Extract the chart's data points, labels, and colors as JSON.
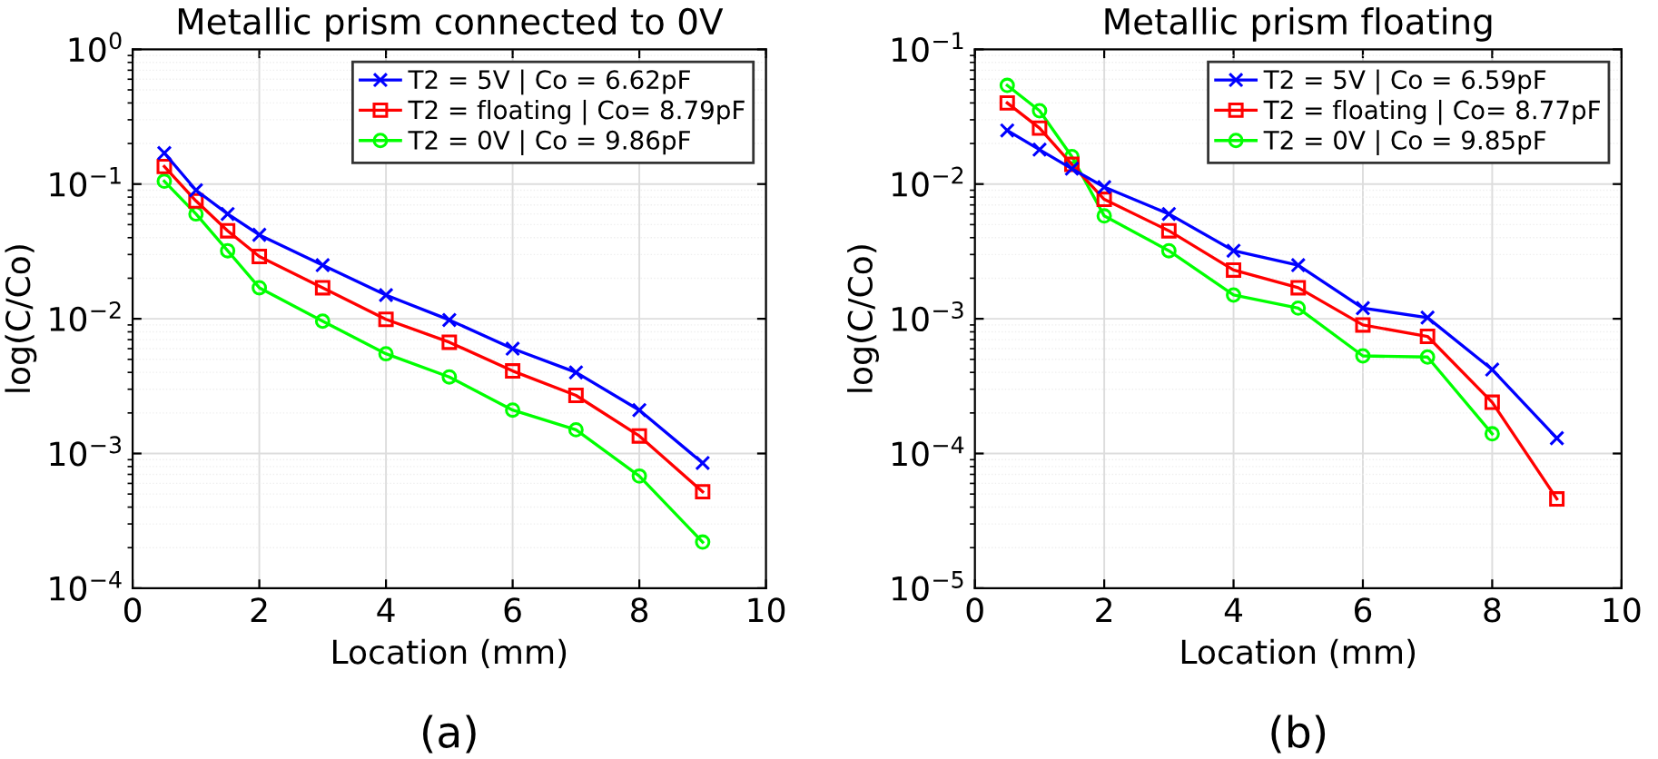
{
  "chart_data": [
    {
      "type": "line",
      "title": "Metallic prism connected to 0V",
      "xlabel": "Location (mm)",
      "ylabel": "log(C/Co)",
      "log": "y",
      "grid": true,
      "legend": "top right",
      "xlim": [
        0,
        10
      ],
      "xticks": [
        0,
        2,
        4,
        6,
        8,
        10
      ],
      "ylim": [
        0.0001,
        1
      ],
      "yticks": [
        {
          "value": 0.0001,
          "label": "10$^{−4}$"
        },
        {
          "value": 0.001,
          "label": "10$^{−3}$"
        },
        {
          "value": 0.01,
          "label": "10$^{−2}$"
        },
        {
          "value": 0.1,
          "label": "10$^{−1}$"
        },
        {
          "value": 1,
          "label": "10$^{0}$"
        }
      ],
      "annotations": [
        "(a)"
      ],
      "x": [
        0.5,
        1,
        1.5,
        2,
        3,
        4,
        5,
        6,
        7,
        8,
        9
      ],
      "series": [
        {
          "name": "T2 = 5V | Co = 6.62pF",
          "color": "#0000ff",
          "marker": "cross",
          "values": [
            0.17,
            0.09,
            0.06,
            0.042,
            0.025,
            0.015,
            0.0098,
            0.006,
            0.004,
            0.0021,
            0.00085
          ]
        },
        {
          "name": "T2 = floating | Co= 8.79pF",
          "color": "#ff0000",
          "marker": "square",
          "values": [
            0.135,
            0.075,
            0.045,
            0.029,
            0.017,
            0.0099,
            0.0067,
            0.0041,
            0.0027,
            0.00135,
            0.00052
          ]
        },
        {
          "name": "T2 = 0V | Co = 9.86pF",
          "color": "#00ff00",
          "marker": "circle",
          "values": [
            0.105,
            0.06,
            0.032,
            0.017,
            0.0096,
            0.0055,
            0.0037,
            0.0021,
            0.0015,
            0.00068,
            0.00022
          ]
        }
      ]
    },
    {
      "type": "line",
      "title": "Metallic prism floating",
      "xlabel": "Location (mm)",
      "ylabel": "log(C/Co)",
      "log": "y",
      "grid": true,
      "legend": "top right",
      "xlim": [
        0,
        10
      ],
      "xticks": [
        0,
        2,
        4,
        6,
        8,
        10
      ],
      "ylim": [
        1e-05,
        0.1
      ],
      "yticks": [
        {
          "value": 1e-05,
          "label": "10$^{−5}$"
        },
        {
          "value": 0.0001,
          "label": "10$^{−4}$"
        },
        {
          "value": 0.001,
          "label": "10$^{−3}$"
        },
        {
          "value": 0.01,
          "label": "10$^{−2}$"
        },
        {
          "value": 0.1,
          "label": "10$^{−1}$"
        }
      ],
      "annotations": [
        "(b)"
      ],
      "x": [
        0.5,
        1,
        1.5,
        2,
        3,
        4,
        5,
        6,
        7,
        8,
        9
      ],
      "series": [
        {
          "name": "T2 = 5V | Co = 6.59pF",
          "color": "#0000ff",
          "marker": "cross",
          "values": [
            0.025,
            0.018,
            0.013,
            0.0095,
            0.006,
            0.0032,
            0.0025,
            0.0012,
            0.00102,
            0.00042,
            0.00013
          ]
        },
        {
          "name": "T2 = floating | Co= 8.77pF",
          "color": "#ff0000",
          "marker": "square",
          "values": [
            0.04,
            0.026,
            0.014,
            0.0077,
            0.0045,
            0.0023,
            0.0017,
            0.0009,
            0.00074,
            0.00024,
            4.6e-05
          ]
        },
        {
          "name": "T2 = 0V | Co = 9.85pF",
          "color": "#00ff00",
          "marker": "circle",
          "values": [
            0.054,
            0.035,
            0.016,
            0.0058,
            0.0032,
            0.0015,
            0.0012,
            0.00053,
            0.00052,
            0.00014,
            null
          ]
        }
      ]
    }
  ]
}
